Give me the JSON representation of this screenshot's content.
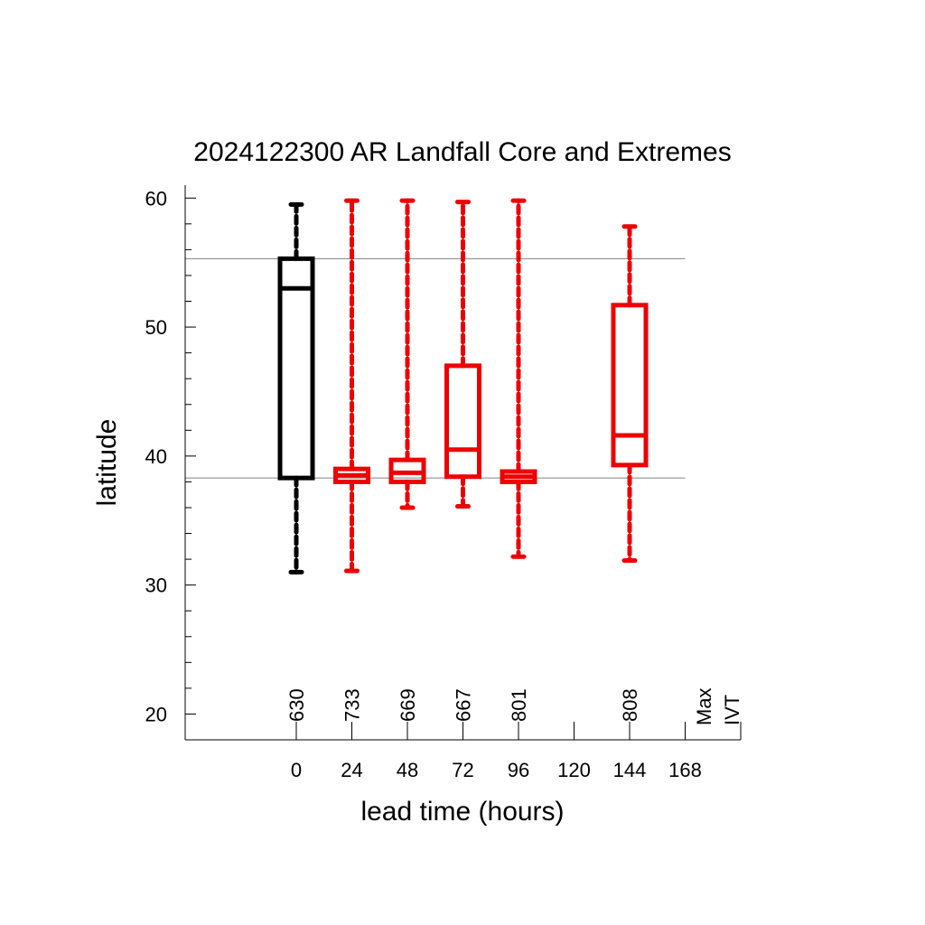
{
  "chart_data": {
    "type": "boxplot",
    "title": "2024122300 AR Landfall Core and Extremes",
    "xlabel": "lead time (hours)",
    "ylabel": "latitude",
    "ylim": [
      18,
      61
    ],
    "xlim": [
      -48,
      192
    ],
    "x_ticks": [
      "0",
      "24",
      "48",
      "72",
      "96",
      "120",
      "144",
      "168"
    ],
    "y_ticks": [
      "20",
      "30",
      "40",
      "50",
      "60"
    ],
    "count_header": [
      "Max",
      "IVT"
    ],
    "reference_lines": [
      55.3,
      38.3
    ],
    "grid": false,
    "legend": "none",
    "colors": {
      "analysis": "#000000",
      "forecast": "#ee0000",
      "reference": "#808080"
    },
    "boxes": [
      {
        "x": 0,
        "min": 31.0,
        "q1": 38.3,
        "median": 53.0,
        "q3": 55.3,
        "max": 59.5,
        "count": "630",
        "color": "#000000"
      },
      {
        "x": 24,
        "min": 31.1,
        "q1": 38.0,
        "median": 38.5,
        "q3": 39.0,
        "max": 59.8,
        "count": "733",
        "color": "#ee0000"
      },
      {
        "x": 48,
        "min": 36.0,
        "q1": 38.0,
        "median": 38.7,
        "q3": 39.7,
        "max": 59.8,
        "count": "669",
        "color": "#ee0000"
      },
      {
        "x": 72,
        "min": 36.1,
        "q1": 38.4,
        "median": 40.5,
        "q3": 47.0,
        "max": 59.7,
        "count": "667",
        "color": "#ee0000"
      },
      {
        "x": 96,
        "min": 32.2,
        "q1": 38.0,
        "median": 38.4,
        "q3": 38.8,
        "max": 59.8,
        "count": "801",
        "color": "#ee0000"
      },
      {
        "x": 144,
        "min": 31.9,
        "q1": 39.3,
        "median": 41.6,
        "q3": 51.7,
        "max": 57.8,
        "count": "808",
        "color": "#ee0000"
      }
    ]
  }
}
